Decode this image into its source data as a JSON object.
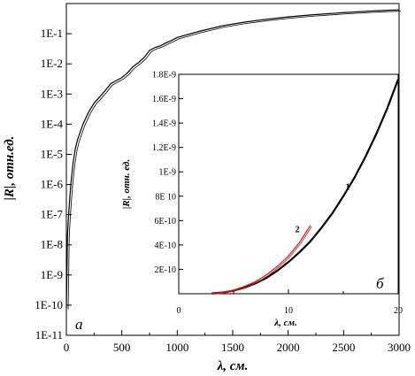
{
  "chart_data": [
    {
      "type": "line",
      "panel": "a",
      "panel_label": "а",
      "xlabel": "λ, см.",
      "ylabel": "|R|, отн.ед.",
      "xlim": [
        0,
        3000
      ],
      "ylim": [
        1e-11,
        1
      ],
      "yscale": "log",
      "x_ticks": [
        0,
        500,
        1000,
        1500,
        2000,
        2500,
        3000
      ],
      "x_tick_labels": [
        "0",
        "500",
        "1000",
        "1500",
        "2000",
        "2500",
        "3000"
      ],
      "y_ticks": [
        1e-11,
        1e-10,
        1e-09,
        1e-08,
        1e-07,
        1e-06,
        1e-05,
        0.0001,
        0.001,
        0.01,
        0.1
      ],
      "y_tick_labels": [
        "1E-11",
        "1E-10",
        "1E-9",
        "1E-8",
        "1E-7",
        "1E-6",
        "1E-5",
        "1E-4",
        "1E-3",
        "1E-2",
        "1E-1"
      ],
      "grid": false,
      "series": [
        {
          "color": "#000000",
          "x": [
            0,
            5,
            10,
            20,
            40,
            60,
            80,
            100,
            150,
            200,
            250,
            300,
            350,
            400,
            450,
            500,
            550,
            600,
            650,
            700,
            750,
            800,
            850,
            900,
            950,
            1000,
            1200,
            1400,
            1600,
            1800,
            2000,
            2200,
            2500,
            2800,
            3000
          ],
          "y": [
            8e-11,
            1e-09,
            2e-08,
            1e-07,
            1e-06,
            5e-06,
            1.5e-05,
            3e-05,
            0.0001,
            0.00025,
            0.0005,
            0.0008,
            0.0013,
            0.0022,
            0.0028,
            0.0035,
            0.005,
            0.008,
            0.011,
            0.016,
            0.028,
            0.035,
            0.04,
            0.05,
            0.06,
            0.075,
            0.12,
            0.18,
            0.24,
            0.3,
            0.36,
            0.42,
            0.5,
            0.58,
            0.62
          ]
        }
      ]
    },
    {
      "type": "line",
      "panel": "b",
      "panel_label": "б",
      "xlabel": "λ, см.",
      "ylabel": "|R|, отн. ед.",
      "xlim": [
        0,
        20
      ],
      "ylim": [
        0,
        1.8e-09
      ],
      "x_ticks": [
        0,
        10,
        20
      ],
      "x_tick_labels": [
        "0",
        "10",
        "20"
      ],
      "y_ticks": [
        2e-10,
        4e-10,
        6e-10,
        8e-10,
        1e-09,
        1.2e-09,
        1.4e-09,
        1.6e-09,
        1.8e-09
      ],
      "y_tick_labels": [
        "2E-10",
        "4E-10",
        "6E-10",
        "8E 10",
        "1E-9",
        "1.2E-9",
        "1.4E-9",
        "1.6E-9",
        "1.8E-9"
      ],
      "grid": false,
      "series": [
        {
          "label": "1",
          "color": "#000000",
          "x": [
            3,
            4,
            5,
            6,
            7,
            8,
            9,
            10,
            11,
            12,
            13,
            14,
            15,
            16,
            17,
            18,
            19,
            20
          ],
          "y": [
            3e-12,
            1e-11,
            2.5e-11,
            5e-11,
            8.5e-11,
            1.3e-10,
            1.9e-10,
            2.6e-10,
            3.4e-10,
            4.3e-10,
            5.4e-10,
            6.6e-10,
            8e-10,
            9.5e-10,
            1.12e-09,
            1.31e-09,
            1.52e-09,
            1.76e-09
          ]
        },
        {
          "label": "2",
          "color": "#cc2020",
          "x": [
            3,
            4,
            5,
            6,
            7,
            8,
            9,
            10,
            11,
            11.5,
            12
          ],
          "y": [
            3e-12,
            1.2e-11,
            3e-11,
            6e-11,
            1e-10,
            1.55e-10,
            2.25e-10,
            3.1e-10,
            4.2e-10,
            4.9e-10,
            5.6e-10
          ]
        }
      ]
    }
  ]
}
